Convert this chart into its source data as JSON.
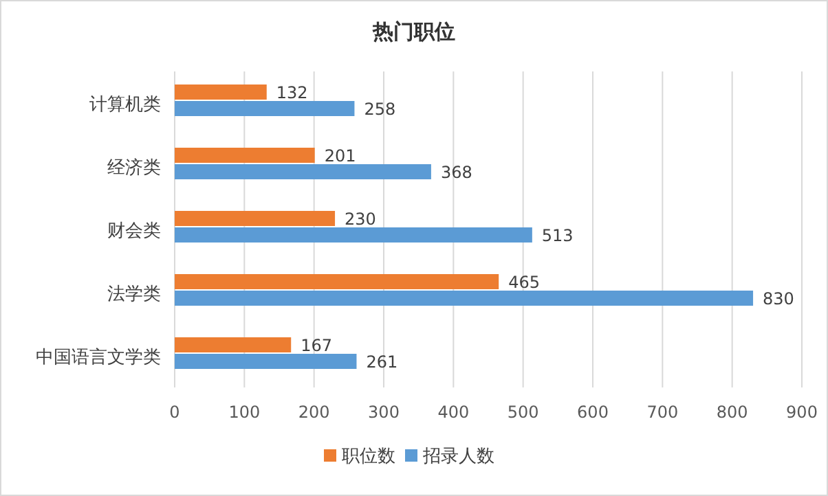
{
  "chart_data": {
    "type": "bar",
    "orientation": "horizontal",
    "title": "热门职位",
    "categories": [
      "计算机类",
      "经济类",
      "财会类",
      "法学类",
      "中国语言文学类"
    ],
    "series": [
      {
        "name": "职位数",
        "color": "#ed7d31",
        "values": [
          132,
          201,
          230,
          465,
          167
        ]
      },
      {
        "name": "招录人数",
        "color": "#5b9bd5",
        "values": [
          258,
          368,
          513,
          830,
          261
        ]
      }
    ],
    "xlim": [
      0,
      900
    ],
    "xticks": [
      0,
      100,
      200,
      300,
      400,
      500,
      600,
      700,
      800,
      900
    ],
    "grid": "x",
    "legend": "bottom",
    "data_labels": true
  }
}
